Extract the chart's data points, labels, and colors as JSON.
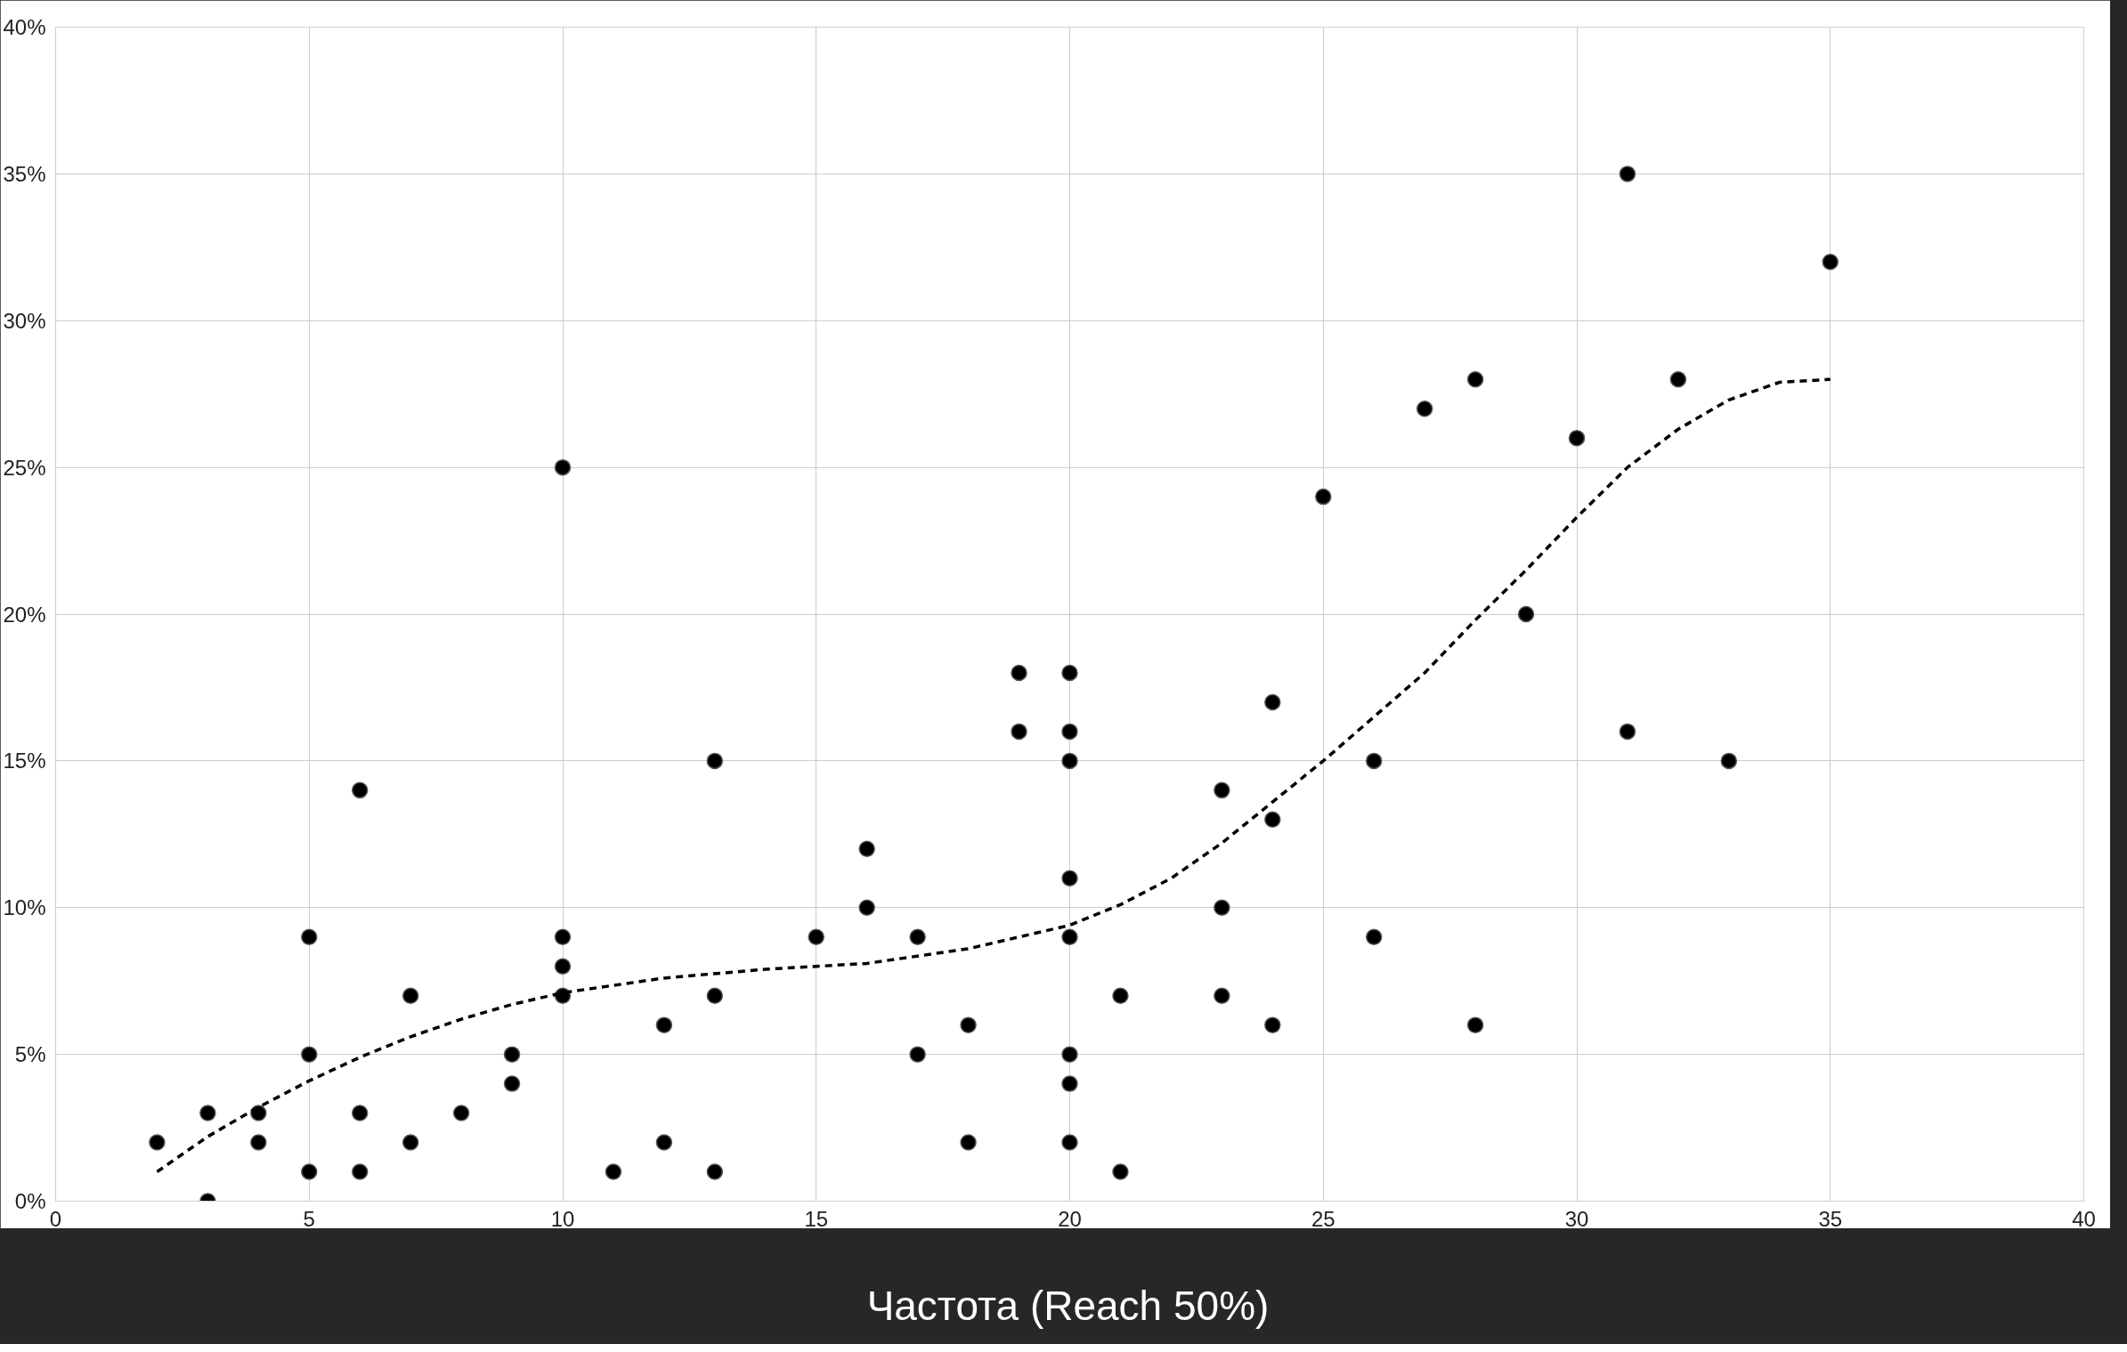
{
  "chart_data": {
    "type": "scatter",
    "xlabel": "Частота (Reach 50%)",
    "xlim": [
      0,
      40
    ],
    "xticks": [
      0,
      5,
      10,
      15,
      20,
      25,
      30,
      35,
      40
    ],
    "ylim": [
      0,
      40
    ],
    "yticks": [
      {
        "value": 0,
        "label": "0%"
      },
      {
        "value": 5,
        "label": "5%"
      },
      {
        "value": 10,
        "label": "10%"
      },
      {
        "value": 15,
        "label": "15%"
      },
      {
        "value": 20,
        "label": "20%"
      },
      {
        "value": 25,
        "label": "25%"
      },
      {
        "value": 30,
        "label": "30%"
      },
      {
        "value": 35,
        "label": "35%"
      },
      {
        "value": 40,
        "label": "40%"
      }
    ],
    "grid": true,
    "series": [
      {
        "marker": "circle",
        "color": "#000000",
        "x": [
          2,
          3,
          3,
          4,
          4,
          5,
          5,
          5,
          6,
          6,
          6,
          7,
          7,
          8,
          9,
          9,
          10,
          10,
          10,
          10,
          11,
          12,
          12,
          13,
          13,
          13,
          15,
          16,
          16,
          17,
          17,
          18,
          18,
          19,
          19,
          20,
          20,
          20,
          20,
          20,
          20,
          20,
          20,
          21,
          21,
          23,
          23,
          23,
          24,
          24,
          24,
          25,
          26,
          26,
          27,
          28,
          28,
          29,
          30,
          31,
          31,
          32,
          33,
          35
        ],
        "values": [
          2,
          3,
          0,
          3,
          2,
          9,
          5,
          1,
          14,
          3,
          1,
          7,
          2,
          3,
          5,
          4,
          25,
          9,
          8,
          7,
          1,
          6,
          2,
          15,
          7,
          1,
          9,
          12,
          10,
          9,
          5,
          6,
          2,
          18,
          16,
          18,
          16,
          15,
          11,
          9,
          5,
          4,
          2,
          7,
          1,
          14,
          10,
          7,
          17,
          13,
          6,
          24,
          15,
          9,
          27,
          28,
          6,
          20,
          26,
          35,
          16,
          28,
          15,
          32
        ]
      },
      {
        "type": "line",
        "color": "#000000",
        "line_style": "dashed",
        "x": [
          2,
          3,
          4,
          5,
          6,
          7,
          8,
          9,
          10,
          12,
          14,
          16,
          18,
          20,
          21,
          22,
          23,
          24,
          25,
          26,
          27,
          28,
          29,
          30,
          31,
          32,
          33,
          34,
          35
        ],
        "values": [
          1,
          2.2,
          3.2,
          4.1,
          4.9,
          5.6,
          6.2,
          6.7,
          7.1,
          7.6,
          7.9,
          8.1,
          8.6,
          9.4,
          10.1,
          11,
          12.2,
          13.6,
          15,
          16.5,
          18,
          19.8,
          21.5,
          23.3,
          25,
          26.3,
          27.3,
          27.9,
          28
        ]
      }
    ]
  }
}
